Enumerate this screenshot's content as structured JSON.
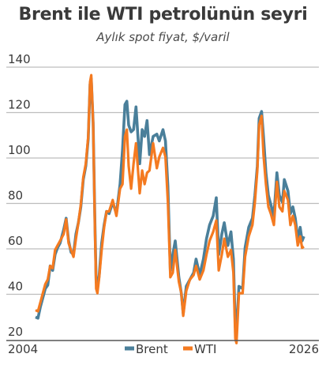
{
  "colors": {
    "brent": "#4a7f9a",
    "wti": "#f47a20",
    "grid": "#bdbdbd",
    "text": "#3a3a3a"
  },
  "chart_data": {
    "type": "line",
    "title": "Brent ile WTI petrolünün seyri",
    "subtitle": "Aylık spot fiyat, $/varil",
    "xlabel": "",
    "ylabel": "",
    "x_tick_labels": [
      "2004",
      "2026"
    ],
    "y_ticks": [
      20,
      40,
      60,
      80,
      100,
      120,
      140
    ],
    "ylim": [
      20,
      140
    ],
    "xlim": [
      2004,
      2025.9
    ],
    "grid": true,
    "legend": "bottom-center",
    "series": [
      {
        "name": "Brent",
        "points": [
          [
            2004.0,
            30.0
          ],
          [
            2004.2,
            29.5
          ],
          [
            2004.4,
            34.5
          ],
          [
            2004.6,
            38.5
          ],
          [
            2004.8,
            42.5
          ],
          [
            2005.0,
            44.0
          ],
          [
            2005.2,
            52.5
          ],
          [
            2005.4,
            50.5
          ],
          [
            2005.6,
            57.5
          ],
          [
            2005.8,
            60.5
          ],
          [
            2006.0,
            62.5
          ],
          [
            2006.3,
            68.5
          ],
          [
            2006.5,
            73.5
          ],
          [
            2006.7,
            63.5
          ],
          [
            2006.9,
            58.5
          ],
          [
            2007.1,
            57.5
          ],
          [
            2007.3,
            66.5
          ],
          [
            2007.5,
            71.5
          ],
          [
            2007.7,
            78.5
          ],
          [
            2007.9,
            90.5
          ],
          [
            2008.1,
            96.5
          ],
          [
            2008.3,
            108.5
          ],
          [
            2008.45,
            132.5
          ],
          [
            2008.55,
            135.0
          ],
          [
            2008.7,
            115.5
          ],
          [
            2008.85,
            70.5
          ],
          [
            2008.95,
            45.5
          ],
          [
            2009.05,
            42.5
          ],
          [
            2009.2,
            48.5
          ],
          [
            2009.4,
            62.5
          ],
          [
            2009.6,
            70.5
          ],
          [
            2009.8,
            76.5
          ],
          [
            2010.0,
            75.5
          ],
          [
            2010.3,
            80.5
          ],
          [
            2010.6,
            75.5
          ],
          [
            2010.9,
            88.5
          ],
          [
            2011.1,
            103.5
          ],
          [
            2011.3,
            123.5
          ],
          [
            2011.45,
            125.0
          ],
          [
            2011.6,
            114.5
          ],
          [
            2011.8,
            111.5
          ],
          [
            2012.0,
            112.5
          ],
          [
            2012.2,
            122.5
          ],
          [
            2012.5,
            97.5
          ],
          [
            2012.7,
            112.5
          ],
          [
            2012.9,
            109.5
          ],
          [
            2013.1,
            116.5
          ],
          [
            2013.3,
            101.5
          ],
          [
            2013.6,
            109.5
          ],
          [
            2013.9,
            110.5
          ],
          [
            2014.1,
            107.5
          ],
          [
            2014.4,
            112.5
          ],
          [
            2014.6,
            107.5
          ],
          [
            2014.8,
            87.5
          ],
          [
            2015.0,
            50.5
          ],
          [
            2015.2,
            57.5
          ],
          [
            2015.4,
            63.5
          ],
          [
            2015.7,
            47.5
          ],
          [
            2015.9,
            40.5
          ],
          [
            2016.05,
            31.5
          ],
          [
            2016.3,
            43.5
          ],
          [
            2016.6,
            46.5
          ],
          [
            2016.9,
            49.5
          ],
          [
            2017.1,
            55.5
          ],
          [
            2017.4,
            48.5
          ],
          [
            2017.7,
            55.5
          ],
          [
            2017.95,
            64.5
          ],
          [
            2018.2,
            70.5
          ],
          [
            2018.5,
            74.5
          ],
          [
            2018.75,
            82.5
          ],
          [
            2018.95,
            57.5
          ],
          [
            2019.2,
            66.5
          ],
          [
            2019.4,
            71.5
          ],
          [
            2019.7,
            61.5
          ],
          [
            2019.95,
            67.5
          ],
          [
            2020.15,
            55.5
          ],
          [
            2020.3,
            25.5
          ],
          [
            2020.4,
            23.5
          ],
          [
            2020.6,
            43.5
          ],
          [
            2020.9,
            42.5
          ],
          [
            2021.1,
            60.5
          ],
          [
            2021.4,
            69.5
          ],
          [
            2021.7,
            73.5
          ],
          [
            2021.9,
            83.5
          ],
          [
            2022.1,
            96.5
          ],
          [
            2022.25,
            117.5
          ],
          [
            2022.45,
            120.5
          ],
          [
            2022.6,
            109.5
          ],
          [
            2022.8,
            93.5
          ],
          [
            2023.0,
            83.5
          ],
          [
            2023.2,
            79.5
          ],
          [
            2023.45,
            74.5
          ],
          [
            2023.7,
            93.5
          ],
          [
            2023.9,
            83.5
          ],
          [
            2024.15,
            80.5
          ],
          [
            2024.3,
            90.5
          ],
          [
            2024.6,
            85.5
          ],
          [
            2024.8,
            75.5
          ],
          [
            2025.0,
            78.5
          ],
          [
            2025.2,
            73.5
          ],
          [
            2025.4,
            64.5
          ],
          [
            2025.6,
            69.5
          ],
          [
            2025.75,
            63.5
          ],
          [
            2025.9,
            65.5
          ]
        ]
      },
      {
        "name": "WTI",
        "points": [
          [
            2004.0,
            33.0
          ],
          [
            2004.2,
            32.5
          ],
          [
            2004.4,
            36.5
          ],
          [
            2004.6,
            40.5
          ],
          [
            2004.8,
            44.5
          ],
          [
            2005.0,
            46.5
          ],
          [
            2005.2,
            52.5
          ],
          [
            2005.4,
            51.5
          ],
          [
            2005.6,
            59.5
          ],
          [
            2005.8,
            61.5
          ],
          [
            2006.0,
            63.5
          ],
          [
            2006.3,
            66.5
          ],
          [
            2006.5,
            73.0
          ],
          [
            2006.7,
            62.5
          ],
          [
            2006.9,
            59.5
          ],
          [
            2007.1,
            56.5
          ],
          [
            2007.3,
            64.5
          ],
          [
            2007.5,
            71.5
          ],
          [
            2007.7,
            79.5
          ],
          [
            2007.9,
            91.5
          ],
          [
            2008.1,
            97.5
          ],
          [
            2008.3,
            109.5
          ],
          [
            2008.45,
            133.5
          ],
          [
            2008.55,
            136.5
          ],
          [
            2008.7,
            115.5
          ],
          [
            2008.85,
            68.5
          ],
          [
            2008.95,
            42.5
          ],
          [
            2009.05,
            40.5
          ],
          [
            2009.2,
            47.5
          ],
          [
            2009.4,
            59.5
          ],
          [
            2009.6,
            69.5
          ],
          [
            2009.8,
            76.5
          ],
          [
            2010.0,
            76.5
          ],
          [
            2010.3,
            81.5
          ],
          [
            2010.6,
            74.5
          ],
          [
            2010.9,
            86.5
          ],
          [
            2011.1,
            88.5
          ],
          [
            2011.3,
            109.5
          ],
          [
            2011.45,
            112.5
          ],
          [
            2011.6,
            96.5
          ],
          [
            2011.8,
            86.5
          ],
          [
            2012.0,
            97.5
          ],
          [
            2012.2,
            106.5
          ],
          [
            2012.5,
            84.5
          ],
          [
            2012.7,
            94.5
          ],
          [
            2012.9,
            88.5
          ],
          [
            2013.1,
            93.5
          ],
          [
            2013.3,
            94.5
          ],
          [
            2013.6,
            106.5
          ],
          [
            2013.9,
            95.5
          ],
          [
            2014.1,
            100.5
          ],
          [
            2014.4,
            104.5
          ],
          [
            2014.6,
            100.5
          ],
          [
            2014.8,
            80.5
          ],
          [
            2015.0,
            47.5
          ],
          [
            2015.2,
            49.5
          ],
          [
            2015.4,
            59.5
          ],
          [
            2015.7,
            45.5
          ],
          [
            2015.9,
            40.5
          ],
          [
            2016.05,
            30.5
          ],
          [
            2016.3,
            41.5
          ],
          [
            2016.6,
            46.5
          ],
          [
            2016.9,
            48.5
          ],
          [
            2017.1,
            52.5
          ],
          [
            2017.4,
            46.5
          ],
          [
            2017.7,
            50.5
          ],
          [
            2017.95,
            57.5
          ],
          [
            2018.2,
            63.5
          ],
          [
            2018.5,
            67.5
          ],
          [
            2018.75,
            72.5
          ],
          [
            2018.95,
            50.5
          ],
          [
            2019.2,
            57.5
          ],
          [
            2019.4,
            64.5
          ],
          [
            2019.7,
            56.5
          ],
          [
            2019.95,
            59.5
          ],
          [
            2020.15,
            49.5
          ],
          [
            2020.3,
            20.5
          ],
          [
            2020.4,
            18.5
          ],
          [
            2020.6,
            40.5
          ],
          [
            2020.9,
            40.5
          ],
          [
            2021.1,
            56.5
          ],
          [
            2021.4,
            65.5
          ],
          [
            2021.7,
            70.5
          ],
          [
            2021.9,
            80.5
          ],
          [
            2022.1,
            94.5
          ],
          [
            2022.25,
            114.5
          ],
          [
            2022.45,
            118.5
          ],
          [
            2022.6,
            101.5
          ],
          [
            2022.8,
            88.5
          ],
          [
            2023.0,
            78.5
          ],
          [
            2023.2,
            75.5
          ],
          [
            2023.45,
            70.5
          ],
          [
            2023.7,
            89.5
          ],
          [
            2023.9,
            78.5
          ],
          [
            2024.15,
            76.5
          ],
          [
            2024.3,
            85.5
          ],
          [
            2024.6,
            81.5
          ],
          [
            2024.8,
            70.5
          ],
          [
            2025.0,
            74.5
          ],
          [
            2025.2,
            70.5
          ],
          [
            2025.4,
            61.5
          ],
          [
            2025.6,
            65.5
          ],
          [
            2025.75,
            60.5
          ],
          [
            2025.9,
            61.0
          ]
        ]
      }
    ]
  }
}
